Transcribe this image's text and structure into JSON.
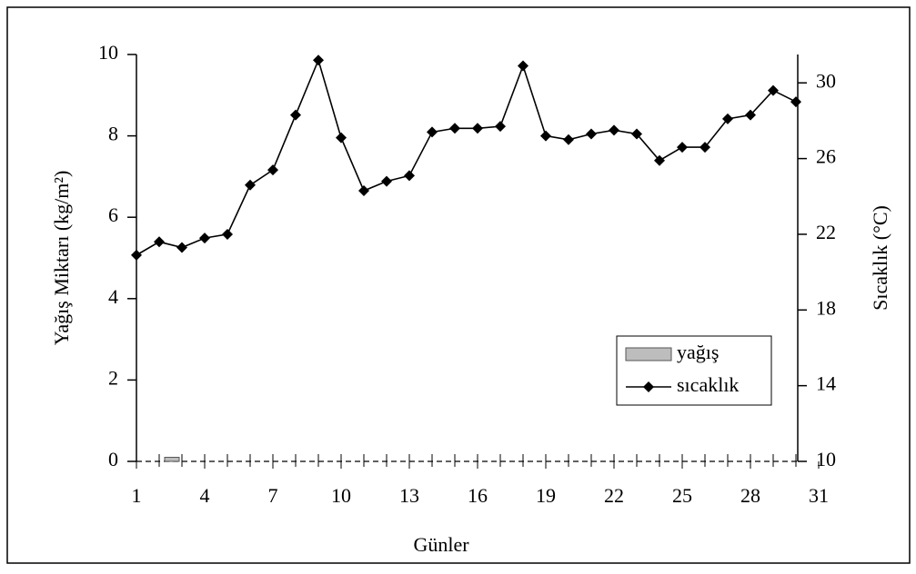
{
  "chart_data": {
    "type": "bar_line",
    "x_label": "Günler",
    "y_label": "Yağış Miktarı (kg/m²)",
    "y2_label": "Sıcaklık (°C)",
    "x": [
      1,
      2,
      3,
      4,
      5,
      6,
      7,
      8,
      9,
      10,
      11,
      12,
      13,
      14,
      15,
      16,
      17,
      18,
      19,
      20,
      21,
      22,
      23,
      24,
      25,
      26,
      27,
      28,
      29,
      30
    ],
    "xlim": [
      1,
      31
    ],
    "xticks": [
      1,
      4,
      7,
      10,
      13,
      16,
      19,
      22,
      25,
      28,
      31
    ],
    "ylim": [
      0,
      10
    ],
    "yticks": [
      0,
      2,
      4,
      6,
      8,
      10
    ],
    "y2lim": [
      10,
      31.5
    ],
    "y2ticks": [
      10,
      14,
      18,
      22,
      26,
      30
    ],
    "legend": "lower right",
    "series": [
      {
        "name": "yağış",
        "type": "bar",
        "color": "#bdbdbd",
        "values": [
          0,
          0.1,
          0,
          0,
          0,
          0,
          0,
          0,
          0,
          0,
          0,
          0,
          0,
          0,
          0,
          0,
          0,
          0,
          0,
          0,
          0,
          0,
          0,
          0,
          0,
          0,
          0,
          0,
          0,
          0
        ]
      },
      {
        "name": "sıcaklık",
        "type": "line",
        "axis": "y2",
        "color": "#000000",
        "values": [
          20.9,
          21.6,
          21.3,
          21.8,
          22.0,
          24.6,
          25.4,
          28.3,
          31.2,
          27.1,
          24.3,
          24.8,
          25.1,
          27.4,
          27.6,
          27.6,
          27.7,
          30.9,
          27.2,
          27.0,
          27.3,
          27.5,
          27.3,
          25.9,
          26.6,
          26.6,
          28.1,
          28.3,
          29.6,
          29.0
        ]
      }
    ]
  }
}
